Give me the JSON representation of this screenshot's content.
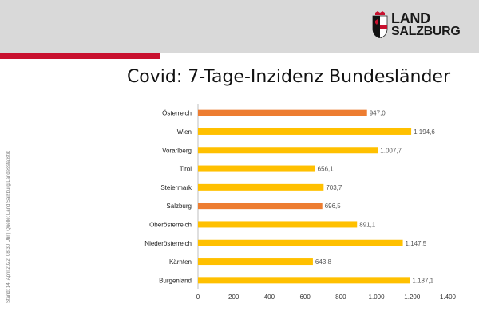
{
  "header": {
    "logo_line1": "LAND",
    "logo_line2": "SALZBURG",
    "accent_color": "#c8102e"
  },
  "side_note": "Stand: 14. April 2022, 08:30 Uhr | Quelle: Land Salzburg/Landesstatistik",
  "chart_data": {
    "type": "bar",
    "orientation": "horizontal",
    "title": "Covid: 7-Tage-Inzidenz Bundesländer",
    "categories": [
      "Österreich",
      "Wien",
      "Vorarlberg",
      "Tirol",
      "Steiermark",
      "Salzburg",
      "Oberösterreich",
      "Niederösterreich",
      "Kärnten",
      "Burgenland"
    ],
    "values": [
      947.0,
      1194.6,
      1007.7,
      656.1,
      703.7,
      696.5,
      891.1,
      1147.5,
      643.8,
      1187.1
    ],
    "value_labels": [
      "947,0",
      "1.194,6",
      "1.007,7",
      "656,1",
      "703,7",
      "696,5",
      "891,1",
      "1.147,5",
      "643,8",
      "1.187,1"
    ],
    "bar_colors": [
      "#ed7d31",
      "#ffc000",
      "#ffc000",
      "#ffc000",
      "#ffc000",
      "#ed7d31",
      "#ffc000",
      "#ffc000",
      "#ffc000",
      "#ffc000"
    ],
    "xlim": [
      0,
      1400
    ],
    "xticks": [
      0,
      200,
      400,
      600,
      800,
      1000,
      1200,
      1400
    ],
    "xtick_labels": [
      "0",
      "200",
      "400",
      "600",
      "800",
      "1.000",
      "1.200",
      "1.400"
    ],
    "grid": false,
    "legend": "none"
  }
}
